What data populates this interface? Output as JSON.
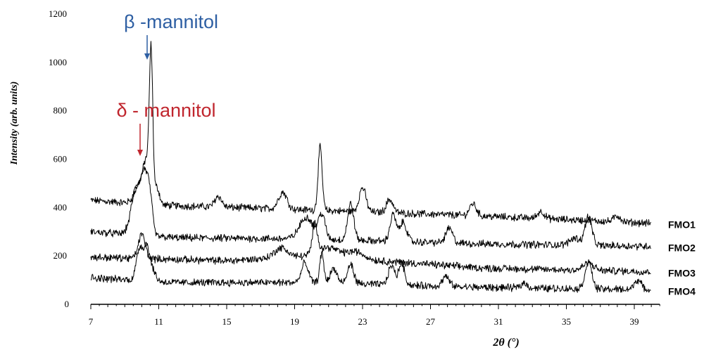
{
  "chart_data": {
    "type": "line",
    "xlabel": "2θ (°)",
    "ylabel": "Intensity (arb. units)",
    "xlim": [
      7,
      40.5
    ],
    "ylim": [
      0,
      1200
    ],
    "x_ticks": [
      7,
      11,
      15,
      19,
      23,
      27,
      31,
      35,
      39
    ],
    "y_ticks": [
      0,
      200,
      400,
      600,
      800,
      1000,
      1200
    ],
    "grid": false,
    "series": [
      {
        "name": "FMO1",
        "baseline": [
          [
            7,
            430
          ],
          [
            11,
            410
          ],
          [
            20,
            390
          ],
          [
            30,
            365
          ],
          [
            40,
            335
          ]
        ],
        "peaks": [
          [
            9.9,
            80,
            0.3
          ],
          [
            10.3,
            150,
            0.2
          ],
          [
            10.55,
            580,
            0.1
          ],
          [
            10.9,
            70,
            0.15
          ],
          [
            14.5,
            45,
            0.2
          ],
          [
            18.3,
            70,
            0.25
          ],
          [
            20.5,
            260,
            0.12
          ],
          [
            23.0,
            100,
            0.2
          ],
          [
            24.6,
            55,
            0.2
          ],
          [
            29.5,
            50,
            0.2
          ],
          [
            33.5,
            30,
            0.2
          ],
          [
            38.0,
            25,
            0.2
          ]
        ]
      },
      {
        "name": "FMO2",
        "baseline": [
          [
            7,
            300
          ],
          [
            12,
            275
          ],
          [
            20,
            270
          ],
          [
            30,
            250
          ],
          [
            40,
            240
          ]
        ],
        "peaks": [
          [
            9.7,
            200,
            0.3
          ],
          [
            10.2,
            210,
            0.2
          ],
          [
            10.5,
            120,
            0.15
          ],
          [
            19.7,
            90,
            0.4
          ],
          [
            20.6,
            100,
            0.2
          ],
          [
            22.3,
            150,
            0.18
          ],
          [
            24.8,
            110,
            0.18
          ],
          [
            25.4,
            80,
            0.2
          ],
          [
            28.1,
            60,
            0.2
          ],
          [
            36.3,
            120,
            0.2
          ],
          [
            35.5,
            30,
            0.3
          ]
        ]
      },
      {
        "name": "FMO3",
        "baseline": [
          [
            7,
            195
          ],
          [
            15,
            180
          ],
          [
            20,
            200
          ],
          [
            25,
            175
          ],
          [
            30,
            150
          ],
          [
            40,
            135
          ]
        ],
        "peaks": [
          [
            10.0,
            100,
            0.2
          ],
          [
            18.2,
            40,
            0.4
          ],
          [
            20.2,
            120,
            0.15
          ],
          [
            21.0,
            40,
            0.6
          ],
          [
            22.6,
            30,
            0.5
          ],
          [
            36.3,
            30,
            0.3
          ]
        ]
      },
      {
        "name": "FMO4",
        "baseline": [
          [
            7,
            110
          ],
          [
            12,
            90
          ],
          [
            20,
            90
          ],
          [
            30,
            70
          ],
          [
            40,
            60
          ]
        ],
        "peaks": [
          [
            9.9,
            140,
            0.2
          ],
          [
            10.3,
            120,
            0.15
          ],
          [
            10.6,
            50,
            0.2
          ],
          [
            19.6,
            80,
            0.2
          ],
          [
            20.6,
            120,
            0.12
          ],
          [
            21.3,
            60,
            0.2
          ],
          [
            22.3,
            80,
            0.18
          ],
          [
            24.7,
            80,
            0.18
          ],
          [
            25.3,
            90,
            0.18
          ],
          [
            27.9,
            40,
            0.2
          ],
          [
            32.5,
            20,
            0.2
          ],
          [
            36.3,
            110,
            0.2
          ],
          [
            39.2,
            40,
            0.2
          ]
        ]
      }
    ],
    "annotations": [
      {
        "text": "β -mannitol",
        "x": 10.55,
        "color": "#2e5fa3"
      },
      {
        "text": "δ - mannitol",
        "x": 9.9,
        "color": "#c0262e"
      }
    ]
  }
}
